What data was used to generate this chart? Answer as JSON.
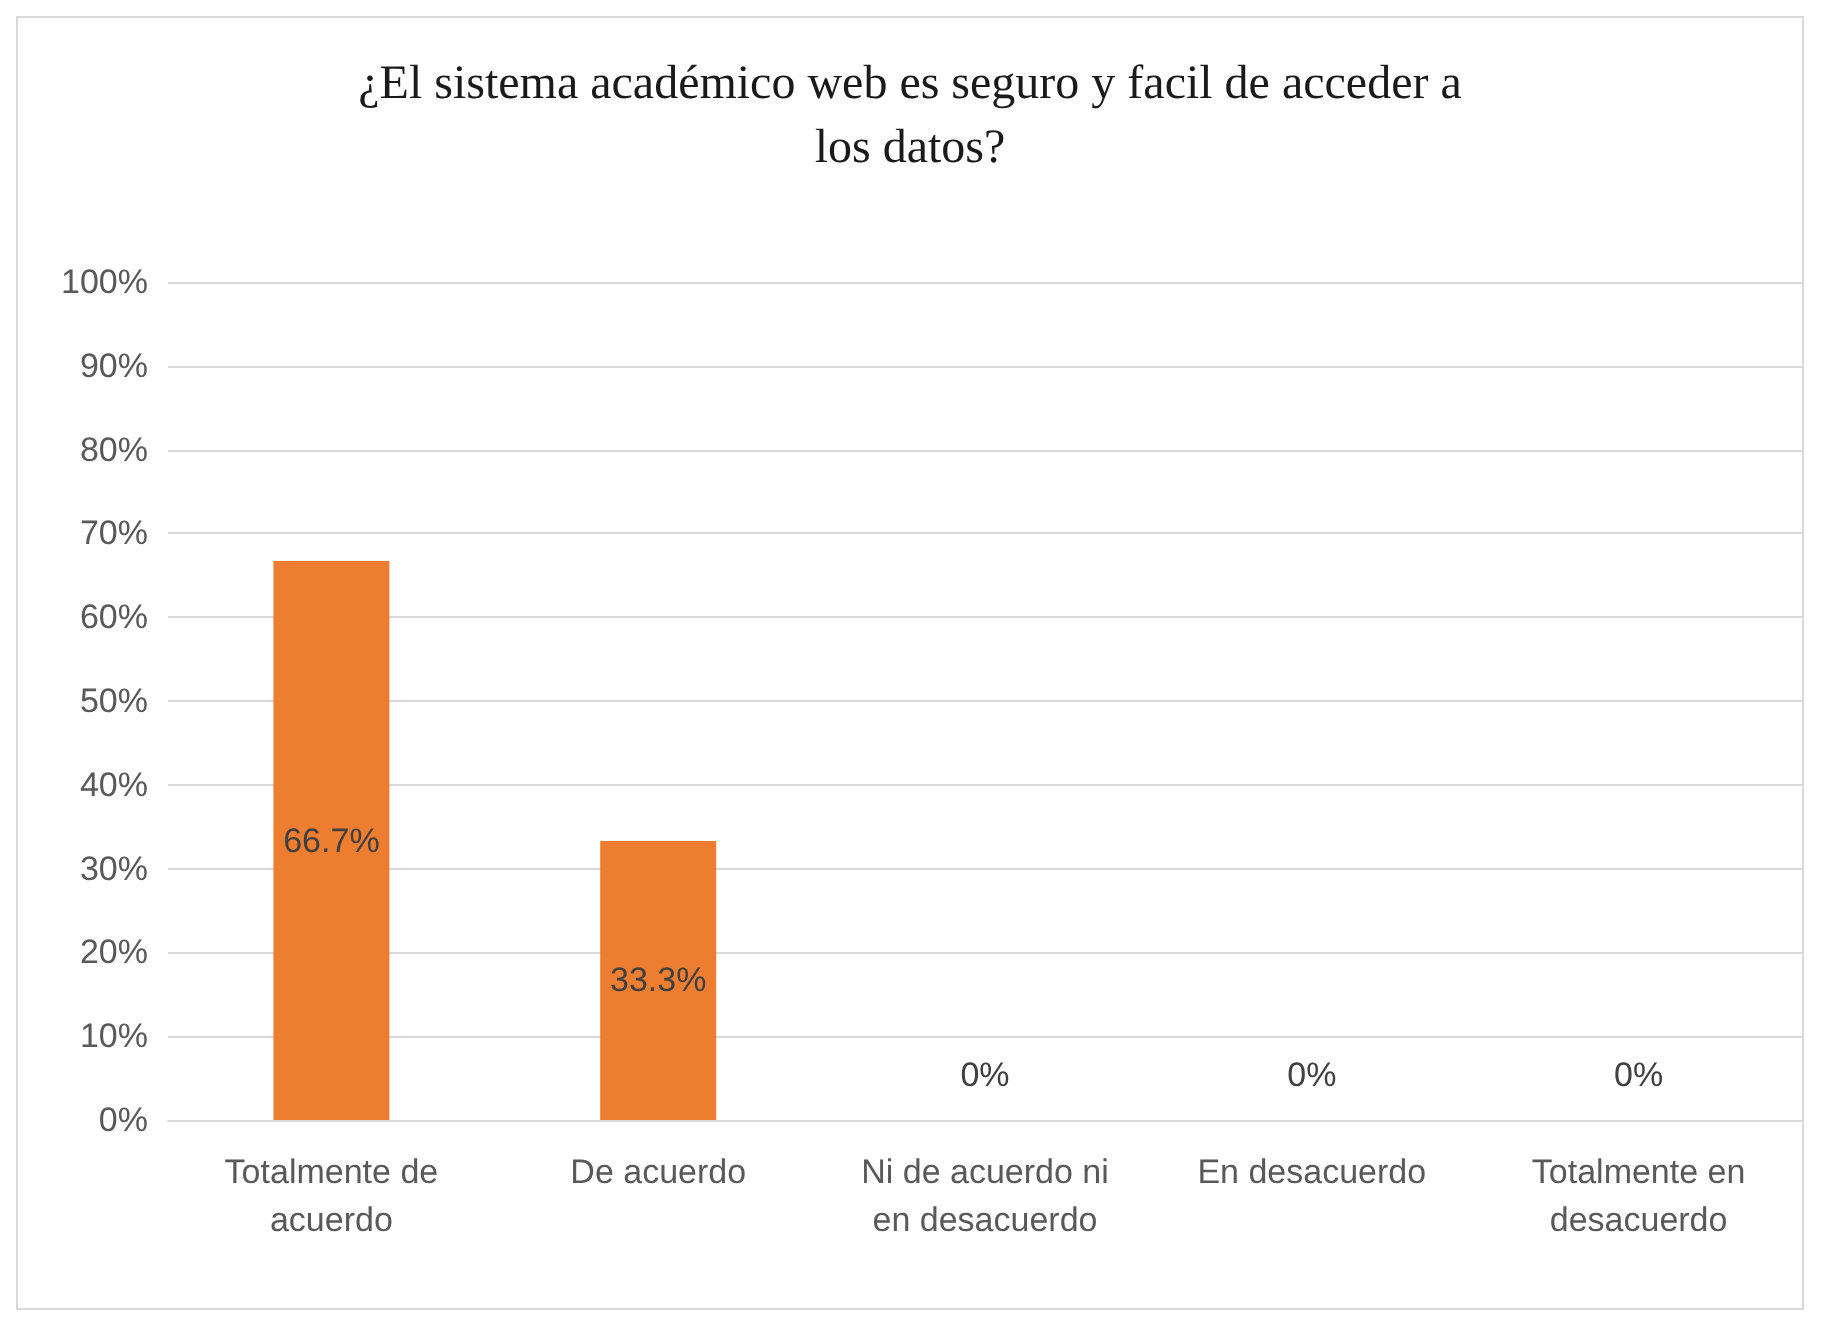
{
  "chart_data": {
    "type": "bar",
    "title": "¿El sistema académico web es seguro y facil de acceder a los datos?",
    "categories": [
      "Totalmente de acuerdo",
      "De acuerdo",
      "Ni de acuerdo ni en desacuerdo",
      "En desacuerdo",
      "Totalmente en desacuerdo"
    ],
    "values": [
      66.7,
      33.3,
      0,
      0,
      0
    ],
    "value_labels": [
      "66.7%",
      "33.3%",
      "0%",
      "0%",
      "0%"
    ],
    "color": "#ed7d31",
    "ylim": [
      0,
      100
    ],
    "yticks": [
      {
        "value": 0,
        "label": "0%"
      },
      {
        "value": 10,
        "label": "10%"
      },
      {
        "value": 20,
        "label": "20%"
      },
      {
        "value": 30,
        "label": "30%"
      },
      {
        "value": 40,
        "label": "40%"
      },
      {
        "value": 50,
        "label": "50%"
      },
      {
        "value": 60,
        "label": "60%"
      },
      {
        "value": 70,
        "label": "70%"
      },
      {
        "value": 80,
        "label": "80%"
      },
      {
        "value": 90,
        "label": "90%"
      },
      {
        "value": 100,
        "label": "100%"
      }
    ],
    "grid": true
  }
}
